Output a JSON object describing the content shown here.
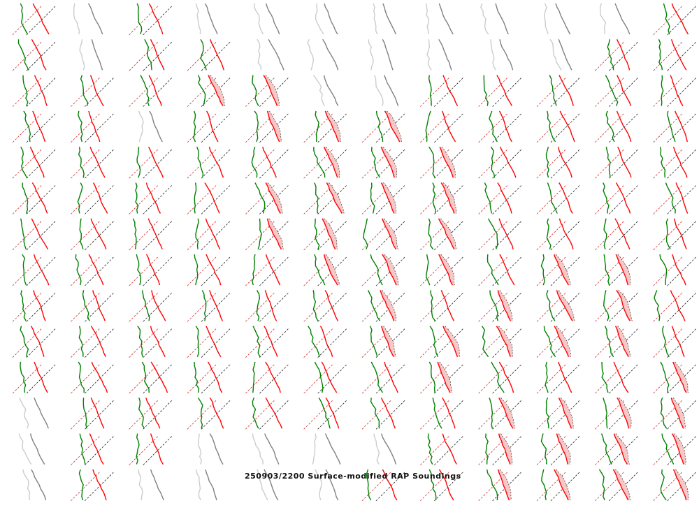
{
  "title": "250903/2200 Surface-modified RAP Soundings",
  "chart_data": {
    "type": "small-multiples-soundings",
    "title": "250903/2200 Surface-modified RAP Soundings",
    "columns": 12,
    "rows": 14,
    "legend_key": {
      "c": "colored sounding (temperature red, dewpoint green)",
      "p": "colored sounding with shaded CAPE area",
      "g": "gray sounding"
    },
    "cells": [
      "cgcggggggggc",
      "cgccggggggcc",
      "cccppggccccc",
      "ccgcpppccccc",
      "cccccpppcccc",
      "ccccppppcccc",
      "ccccppppcccc",
      "cccccpppcppc",
      "ccccccpcpppc",
      "ccccccpppppc",
      "cccccccpcccp",
      "gcccccccpppp",
      "gccggggcpppp",
      "gcggggccpppp"
    ],
    "colors": {
      "temperature": "#ff0000",
      "dewpoint": "#008000",
      "gray_temperature": "#808080",
      "gray_dewpoint": "#cccccc",
      "cape_fill": "#f8c8c8",
      "dry_adiabat_red": "#cc3333",
      "parcel_black": "#000000"
    }
  }
}
